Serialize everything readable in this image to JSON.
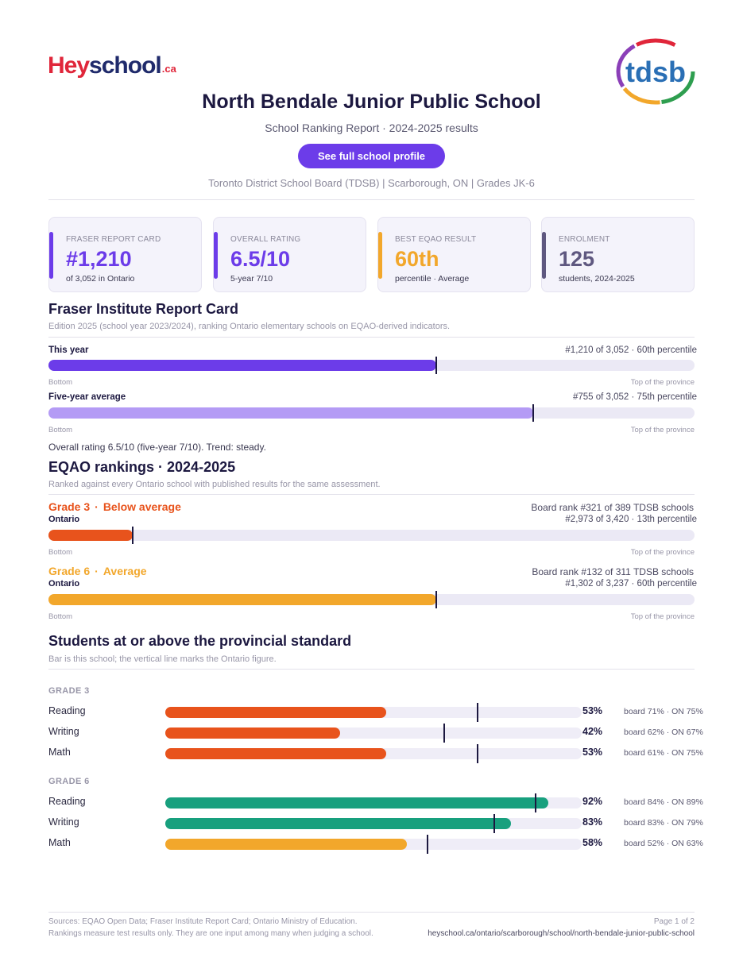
{
  "logo": {
    "hey": "Hey",
    "school": "school",
    "ca": ".ca",
    "board_logo": "tdsb"
  },
  "header": {
    "title": "North Bendale Junior Public School",
    "subtitle": "School Ranking Report  ·  2024-2025 results",
    "profile_button": "See full school profile",
    "meta": "Toronto District School Board (TDSB)  |  Scarborough, ON  |  Grades JK-6"
  },
  "stats": [
    {
      "label": "FRASER REPORT CARD",
      "value": "#1,210",
      "sub": "of 3,052 in Ontario",
      "color": "#6c3ce9"
    },
    {
      "label": "OVERALL RATING",
      "value": "6.5/10",
      "sub": "5-year 7/10",
      "color": "#6c3ce9"
    },
    {
      "label": "BEST EQAO RESULT",
      "value": "60th",
      "sub": "percentile  ·  Average",
      "color": "#f2a72b"
    },
    {
      "label": "ENROLMENT",
      "value": "125",
      "sub": "students, 2024-2025",
      "color": "#5f5880"
    }
  ],
  "fraser": {
    "title": "Fraser Institute Report Card",
    "desc": "Edition 2025 (school year 2023/2024), ranking Ontario elementary schools on EQAO-derived indicators.",
    "axis_bottom": "Bottom",
    "axis_top": "Top of the province",
    "rows": [
      {
        "label": "This year",
        "right": "#1,210 of 3,052  ·  60th percentile",
        "percentile": 60,
        "color": "#6c3ce9"
      },
      {
        "label": "Five-year average",
        "right": "#755 of 3,052  ·  75th percentile",
        "percentile": 75,
        "color": "#b49bf5"
      }
    ],
    "note": "Overall rating 6.5/10 (five-year 7/10). Trend: steady."
  },
  "eqao": {
    "title": "EQAO rankings  ·  2024-2025",
    "desc": "Ranked against every Ontario school with published results for the same assessment.",
    "grades": [
      {
        "grade": "Grade 3",
        "status": "Below average",
        "color": "#e8531c",
        "region": "Ontario",
        "board_rank": "Board rank #321 of 389 TDSB schools",
        "ontario_rank": "#2,973 of 3,420  ·  13th percentile",
        "percentile": 13
      },
      {
        "grade": "Grade 6",
        "status": "Average",
        "color": "#f2a72b",
        "region": "Ontario",
        "board_rank": "Board rank #132 of 311 TDSB schools",
        "ontario_rank": "#1,302 of 3,237  ·  60th percentile",
        "percentile": 60
      }
    ]
  },
  "standard": {
    "title": "Students at or above the provincial standard",
    "desc": "Bar is this school; the vertical line marks the Ontario figure.",
    "groups": [
      {
        "label": "GRADE 3",
        "subjects": [
          {
            "name": "Reading",
            "value": 53,
            "pct": "53%",
            "ontario": 75,
            "compare": "board 71%  ·  ON 75%",
            "color": "#e8531c"
          },
          {
            "name": "Writing",
            "value": 42,
            "pct": "42%",
            "ontario": 67,
            "compare": "board 62%  ·  ON 67%",
            "color": "#e8531c"
          },
          {
            "name": "Math",
            "value": 53,
            "pct": "53%",
            "ontario": 75,
            "compare": "board 61%  ·  ON 75%",
            "color": "#e8531c"
          }
        ]
      },
      {
        "label": "GRADE 6",
        "subjects": [
          {
            "name": "Reading",
            "value": 92,
            "pct": "92%",
            "ontario": 89,
            "compare": "board 84%  ·  ON 89%",
            "color": "#18a07e"
          },
          {
            "name": "Writing",
            "value": 83,
            "pct": "83%",
            "ontario": 79,
            "compare": "board 83%  ·  ON 79%",
            "color": "#18a07e"
          },
          {
            "name": "Math",
            "value": 58,
            "pct": "58%",
            "ontario": 63,
            "compare": "board 52%  ·  ON 63%",
            "color": "#f2a72b"
          }
        ]
      }
    ]
  },
  "footer": {
    "sources": "Sources: EQAO Open Data; Fraser Institute Report Card; Ontario Ministry of Education.",
    "disclaimer": "Rankings measure test results only. They are one input among many when judging a school.",
    "page": "Page 1 of 2",
    "url": "heyschool.ca/ontario/scarborough/school/north-bendale-junior-public-school"
  }
}
